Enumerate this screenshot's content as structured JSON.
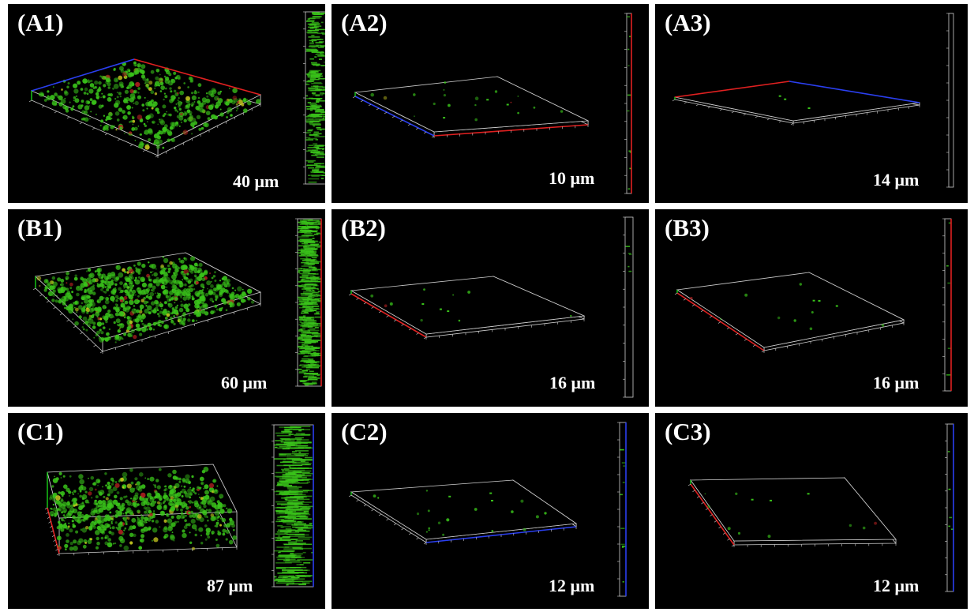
{
  "colors": {
    "background": "#000000",
    "page": "#ffffff",
    "biofilm": "#39c21a",
    "axis_red": "#e02020",
    "axis_blue": "#2a3ff0",
    "axis_green": "#18d018",
    "outline": "#d0d0d0"
  },
  "panels": [
    {
      "label": "(A1)",
      "thickness": "40 μm",
      "density": 0.55
    },
    {
      "label": "(A2)",
      "thickness": "10 μm",
      "density": 0.02
    },
    {
      "label": "(A3)",
      "thickness": "14 μm",
      "density": 0.0
    },
    {
      "label": "(B1)",
      "thickness": "60 μm",
      "density": 0.95
    },
    {
      "label": "(B2)",
      "thickness": "16 μm",
      "density": 0.01
    },
    {
      "label": "(B3)",
      "thickness": "16 μm",
      "density": 0.01
    },
    {
      "label": "(C1)",
      "thickness": "87 μm",
      "density": 0.8
    },
    {
      "label": "(C2)",
      "thickness": "12 μm",
      "density": 0.02
    },
    {
      "label": "(C3)",
      "thickness": "12 μm",
      "density": 0.01
    }
  ]
}
